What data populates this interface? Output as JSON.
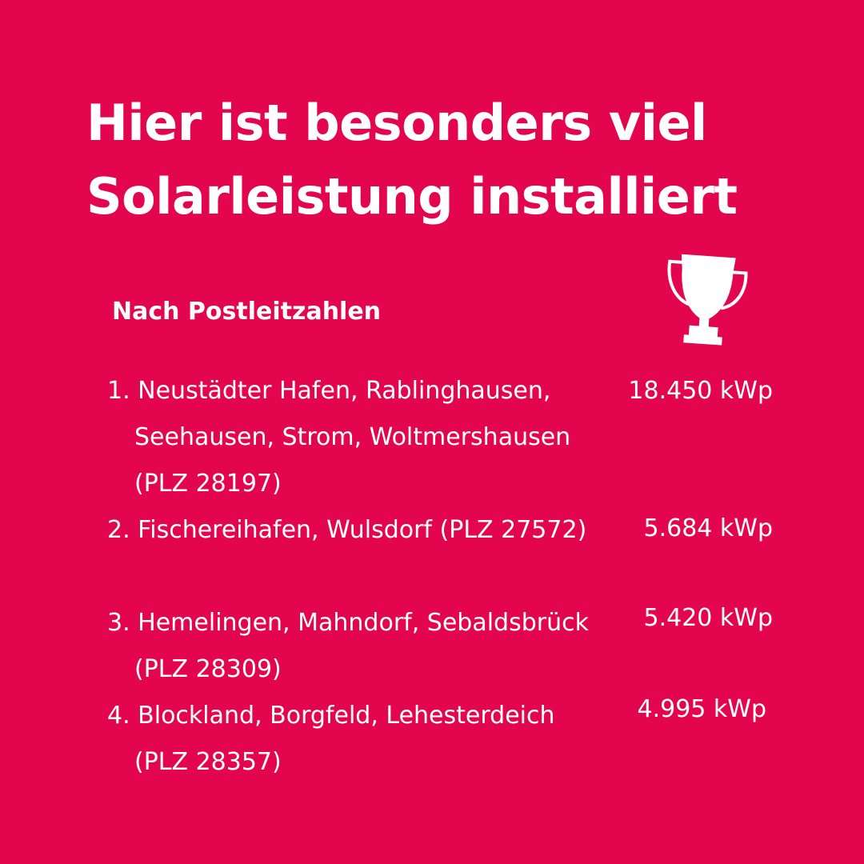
{
  "header": {
    "title_line1": "Hier ist besonders viel",
    "title_line2": "Solarleistung installiert",
    "subtitle": "Nach Postleitzahlen",
    "icon": "trophy-icon"
  },
  "ranking": [
    {
      "label": "1. Neustädter Hafen, Rablinghausen, Seehausen, Strom, Woltmershausen (PLZ 28197)",
      "value": "18.450 kWp"
    },
    {
      "label": "2. Fischereihafen, Wulsdorf (PLZ 27572)",
      "value": "5.684 kWp"
    },
    {
      "label": "3. Hemelingen, Mahndorf, Sebaldsbrück (PLZ 28309)",
      "value": "5.420 kWp"
    },
    {
      "label": "4. Blockland, Borgfeld, Lehesterdeich (PLZ 28357)",
      "value": "4.995 kWp"
    }
  ],
  "colors": {
    "background": "#e3064f",
    "text": "#ffffff"
  }
}
